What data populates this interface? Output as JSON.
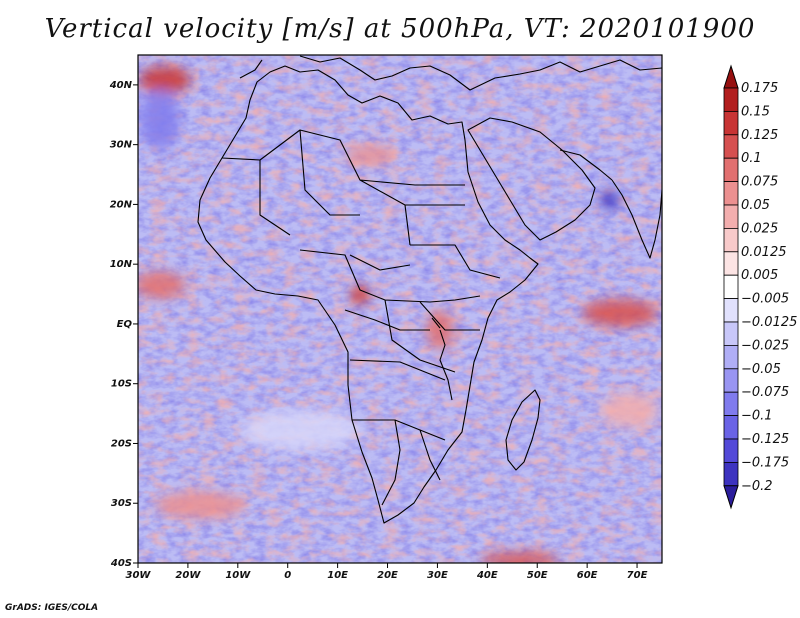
{
  "title": "Vertical velocity [m/s] at 500hPa, VT: 2020101900",
  "credit": "GrADS: IGES/COLA",
  "map": {
    "lon_range": [
      -30,
      75
    ],
    "lat_range": [
      -40,
      45
    ],
    "x_ticks": [
      "30W",
      "20W",
      "10W",
      "0",
      "10E",
      "20E",
      "30E",
      "40E",
      "50E",
      "60E",
      "70E"
    ],
    "y_ticks": [
      "40N",
      "30N",
      "20N",
      "10N",
      "EQ",
      "10S",
      "20S",
      "30S",
      "40S"
    ],
    "boundaries": "black country and coastline outlines of Africa, southern Europe, Middle East, India and Madagascar"
  },
  "colorbar": {
    "colors": [
      "#2b1d9c",
      "#3d33c0",
      "#5349d8",
      "#6a63e6",
      "#807bee",
      "#9995f2",
      "#b0aef6",
      "#c8c7f9",
      "#e1e1fd",
      "#ffffff",
      "#fce4e4",
      "#f8caca",
      "#f3aeae",
      "#ec9090",
      "#e27070",
      "#d65050",
      "#c83434",
      "#b21e1e",
      "#961010"
    ],
    "labels": [
      "0.175",
      "0.15",
      "0.125",
      "0.1",
      "0.075",
      "0.05",
      "0.025",
      "0.0125",
      "0.005",
      "−0.005",
      "−0.0125",
      "−0.025",
      "−0.05",
      "−0.075",
      "−0.1",
      "−0.125",
      "−0.175",
      "−0.2"
    ]
  }
}
